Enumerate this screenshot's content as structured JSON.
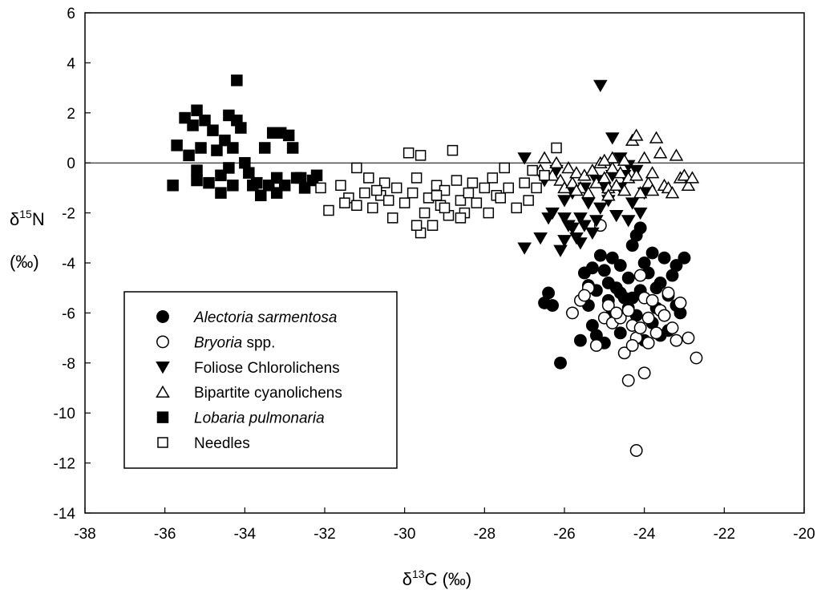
{
  "chart_data": {
    "type": "scatter",
    "title": "",
    "xlabel": {
      "base": "δ",
      "sup": "13",
      "rest": "C (‰)"
    },
    "ylabel": {
      "base": "δ",
      "sup": "15",
      "rest": "N",
      "unit": "(‰)"
    },
    "xlim": [
      -38,
      -20
    ],
    "ylim": [
      -14,
      6
    ],
    "xticks": [
      -38,
      -36,
      -34,
      -32,
      -30,
      -28,
      -26,
      -24,
      -22,
      -20
    ],
    "yticks": [
      -14,
      -12,
      -10,
      -8,
      -6,
      -4,
      -2,
      0,
      2,
      4,
      6
    ],
    "reference_line_y": 0,
    "legend_position": "lower-left",
    "series": [
      {
        "name": "Alectoria sarmentosa",
        "display": {
          "italic": "Alectoria sarmentosa",
          "plain": ""
        },
        "marker": "circle-filled",
        "points": [
          [
            -26.4,
            -5.2
          ],
          [
            -26.5,
            -5.6
          ],
          [
            -26.3,
            -5.7
          ],
          [
            -26.1,
            -8.0
          ],
          [
            -25.6,
            -7.1
          ],
          [
            -25.5,
            -4.4
          ],
          [
            -25.4,
            -4.9
          ],
          [
            -25.3,
            -4.2
          ],
          [
            -25.2,
            -5.1
          ],
          [
            -25.1,
            -3.7
          ],
          [
            -25.0,
            -4.3
          ],
          [
            -24.9,
            -4.8
          ],
          [
            -24.8,
            -3.8
          ],
          [
            -24.7,
            -5.0
          ],
          [
            -24.6,
            -4.1
          ],
          [
            -24.5,
            -5.4
          ],
          [
            -24.4,
            -4.6
          ],
          [
            -24.3,
            -3.3
          ],
          [
            -24.2,
            -2.9
          ],
          [
            -24.1,
            -2.6
          ],
          [
            -24.0,
            -4.0
          ],
          [
            -23.9,
            -4.4
          ],
          [
            -23.8,
            -3.6
          ],
          [
            -23.7,
            -5.0
          ],
          [
            -23.6,
            -4.8
          ],
          [
            -23.5,
            -3.8
          ],
          [
            -23.4,
            -5.3
          ],
          [
            -23.3,
            -4.5
          ],
          [
            -23.2,
            -5.7
          ],
          [
            -23.1,
            -6.0
          ],
          [
            -23.0,
            -3.8
          ],
          [
            -23.2,
            -4.1
          ],
          [
            -25.3,
            -6.5
          ],
          [
            -25.2,
            -6.9
          ],
          [
            -25.0,
            -7.2
          ],
          [
            -24.8,
            -6.0
          ],
          [
            -24.6,
            -6.8
          ],
          [
            -24.4,
            -5.8
          ],
          [
            -24.2,
            -6.1
          ],
          [
            -24.0,
            -7.1
          ],
          [
            -23.8,
            -6.4
          ],
          [
            -23.6,
            -6.9
          ],
          [
            -23.4,
            -6.7
          ],
          [
            -25.4,
            -5.7
          ],
          [
            -24.9,
            -5.5
          ],
          [
            -24.6,
            -5.2
          ],
          [
            -24.3,
            -5.4
          ],
          [
            -24.1,
            -5.1
          ],
          [
            -23.7,
            -5.8
          ],
          [
            -23.5,
            -6.1
          ]
        ]
      },
      {
        "name": "Bryoria spp.",
        "display": {
          "italic": "Bryoria",
          "plain": " spp."
        },
        "marker": "circle-open",
        "points": [
          [
            -25.1,
            -2.5
          ],
          [
            -25.8,
            -6.0
          ],
          [
            -25.6,
            -5.5
          ],
          [
            -25.4,
            -5.0
          ],
          [
            -25.2,
            -7.3
          ],
          [
            -25.0,
            -6.2
          ],
          [
            -24.9,
            -5.7
          ],
          [
            -24.8,
            -6.4
          ],
          [
            -24.6,
            -6.2
          ],
          [
            -24.5,
            -7.6
          ],
          [
            -24.4,
            -5.9
          ],
          [
            -24.3,
            -6.5
          ],
          [
            -24.2,
            -7.0
          ],
          [
            -24.1,
            -6.6
          ],
          [
            -24.0,
            -5.4
          ],
          [
            -23.9,
            -6.2
          ],
          [
            -23.8,
            -5.5
          ],
          [
            -23.7,
            -6.8
          ],
          [
            -23.6,
            -5.9
          ],
          [
            -23.5,
            -6.1
          ],
          [
            -23.4,
            -5.2
          ],
          [
            -23.3,
            -6.6
          ],
          [
            -23.2,
            -7.1
          ],
          [
            -23.1,
            -5.6
          ],
          [
            -22.9,
            -7.0
          ],
          [
            -22.7,
            -7.8
          ],
          [
            -24.4,
            -8.7
          ],
          [
            -24.0,
            -8.4
          ],
          [
            -24.2,
            -11.5
          ],
          [
            -24.3,
            -7.3
          ],
          [
            -23.9,
            -7.2
          ],
          [
            -25.5,
            -5.3
          ],
          [
            -24.7,
            -6.0
          ],
          [
            -24.1,
            -4.5
          ]
        ]
      },
      {
        "name": "Foliose Chlorolichens",
        "display": {
          "italic": "",
          "plain": "Foliose Chlorolichens"
        },
        "marker": "triangle-down-filled",
        "points": [
          [
            -25.1,
            3.1
          ],
          [
            -27.0,
            0.2
          ],
          [
            -27.0,
            -3.4
          ],
          [
            -26.6,
            -3.0
          ],
          [
            -26.5,
            -0.7
          ],
          [
            -26.3,
            -2.0
          ],
          [
            -26.2,
            -0.3
          ],
          [
            -26.1,
            -3.5
          ],
          [
            -26.0,
            -2.2
          ],
          [
            -25.9,
            -2.5
          ],
          [
            -25.8,
            -2.6
          ],
          [
            -25.7,
            -3.0
          ],
          [
            -25.6,
            -2.2
          ],
          [
            -25.5,
            -2.5
          ],
          [
            -25.4,
            -1.6
          ],
          [
            -25.3,
            -2.8
          ],
          [
            -25.2,
            -2.3
          ],
          [
            -25.1,
            -1.8
          ],
          [
            -25.0,
            -1.0
          ],
          [
            -24.9,
            -1.5
          ],
          [
            -24.8,
            1.0
          ],
          [
            -24.7,
            -2.1
          ],
          [
            -24.6,
            -1.0
          ],
          [
            -24.5,
            -0.5
          ],
          [
            -24.4,
            -2.3
          ],
          [
            -24.3,
            -1.6
          ],
          [
            -24.2,
            -0.3
          ],
          [
            -24.1,
            -2.0
          ],
          [
            -24.0,
            -1.2
          ],
          [
            -24.6,
            0.2
          ],
          [
            -25.5,
            -1.0
          ],
          [
            -26.0,
            -1.5
          ],
          [
            -25.8,
            -1.2
          ],
          [
            -24.8,
            -0.5
          ],
          [
            -25.2,
            -0.7
          ],
          [
            -26.4,
            -2.2
          ],
          [
            -25.6,
            -3.2
          ],
          [
            -26.0,
            -3.1
          ],
          [
            -24.4,
            -0.1
          ]
        ]
      },
      {
        "name": "Bipartite cyanolichens",
        "display": {
          "italic": "",
          "plain": "Bipartite cyanolichens"
        },
        "marker": "triangle-up-open",
        "points": [
          [
            -26.5,
            0.2
          ],
          [
            -26.3,
            -0.5
          ],
          [
            -26.1,
            -0.7
          ],
          [
            -26.0,
            -1.0
          ],
          [
            -25.9,
            -0.2
          ],
          [
            -25.8,
            -0.8
          ],
          [
            -25.7,
            -0.4
          ],
          [
            -25.6,
            -1.0
          ],
          [
            -25.5,
            -0.5
          ],
          [
            -25.4,
            -1.2
          ],
          [
            -25.3,
            -0.3
          ],
          [
            -25.2,
            -0.8
          ],
          [
            -25.1,
            0.0
          ],
          [
            -25.0,
            -0.6
          ],
          [
            -24.9,
            -1.0
          ],
          [
            -24.8,
            -0.2
          ],
          [
            -24.7,
            -0.9
          ],
          [
            -24.6,
            -0.4
          ],
          [
            -24.5,
            -1.1
          ],
          [
            -24.4,
            -0.6
          ],
          [
            -24.3,
            0.9
          ],
          [
            -24.2,
            1.1
          ],
          [
            -24.1,
            -1.2
          ],
          [
            -24.0,
            0.2
          ],
          [
            -23.9,
            -0.8
          ],
          [
            -23.8,
            -1.1
          ],
          [
            -23.7,
            1.0
          ],
          [
            -23.6,
            0.4
          ],
          [
            -23.5,
            -0.9
          ],
          [
            -23.4,
            -1.0
          ],
          [
            -23.3,
            -1.2
          ],
          [
            -23.2,
            0.3
          ],
          [
            -23.1,
            -0.6
          ],
          [
            -23.0,
            -0.5
          ],
          [
            -22.9,
            -0.9
          ],
          [
            -22.8,
            -0.6
          ],
          [
            -24.5,
            0.1
          ],
          [
            -24.8,
            0.2
          ],
          [
            -25.0,
            0.1
          ],
          [
            -24.2,
            -0.5
          ],
          [
            -23.8,
            -0.4
          ],
          [
            -26.2,
            0.0
          ],
          [
            -25.7,
            -1.1
          ],
          [
            -24.9,
            -1.3
          ],
          [
            -26.6,
            -0.3
          ]
        ]
      },
      {
        "name": "Lobaria pulmonaria",
        "display": {
          "italic": "Lobaria pulmonaria",
          "plain": ""
        },
        "marker": "square-filled",
        "points": [
          [
            -35.8,
            -0.9
          ],
          [
            -35.7,
            0.7
          ],
          [
            -35.5,
            1.8
          ],
          [
            -35.4,
            0.3
          ],
          [
            -35.3,
            1.5
          ],
          [
            -35.2,
            2.1
          ],
          [
            -35.2,
            -0.3
          ],
          [
            -35.1,
            0.6
          ],
          [
            -35.0,
            1.7
          ],
          [
            -34.9,
            -0.8
          ],
          [
            -34.8,
            1.3
          ],
          [
            -34.7,
            0.5
          ],
          [
            -34.6,
            -1.2
          ],
          [
            -34.5,
            0.9
          ],
          [
            -34.4,
            1.9
          ],
          [
            -34.3,
            0.6
          ],
          [
            -34.2,
            1.7
          ],
          [
            -34.2,
            3.3
          ],
          [
            -34.1,
            1.4
          ],
          [
            -34.0,
            0.0
          ],
          [
            -33.9,
            -0.4
          ],
          [
            -33.8,
            -0.9
          ],
          [
            -33.6,
            -1.3
          ],
          [
            -33.5,
            0.6
          ],
          [
            -33.4,
            -0.9
          ],
          [
            -33.3,
            1.2
          ],
          [
            -33.2,
            -0.6
          ],
          [
            -33.1,
            1.2
          ],
          [
            -33.0,
            -0.9
          ],
          [
            -32.9,
            1.1
          ],
          [
            -32.8,
            0.6
          ],
          [
            -32.7,
            -0.6
          ],
          [
            -32.5,
            -1.0
          ],
          [
            -32.3,
            -0.7
          ],
          [
            -32.2,
            -0.5
          ],
          [
            -35.2,
            -0.7
          ],
          [
            -34.6,
            -0.5
          ],
          [
            -34.4,
            -0.2
          ],
          [
            -33.7,
            -0.8
          ],
          [
            -33.2,
            -1.2
          ],
          [
            -32.6,
            -0.6
          ],
          [
            -34.3,
            -0.9
          ]
        ]
      },
      {
        "name": "Needles",
        "display": {
          "italic": "",
          "plain": "Needles"
        },
        "marker": "square-open",
        "points": [
          [
            -32.1,
            -1.0
          ],
          [
            -31.9,
            -1.9
          ],
          [
            -31.6,
            -0.9
          ],
          [
            -31.4,
            -1.4
          ],
          [
            -31.2,
            -1.7
          ],
          [
            -31.2,
            -0.2
          ],
          [
            -31.0,
            -1.2
          ],
          [
            -30.9,
            -0.6
          ],
          [
            -30.8,
            -1.8
          ],
          [
            -30.6,
            -1.3
          ],
          [
            -30.5,
            -0.8
          ],
          [
            -30.4,
            -1.5
          ],
          [
            -30.3,
            -2.2
          ],
          [
            -30.2,
            -1.0
          ],
          [
            -30.0,
            -1.6
          ],
          [
            -29.9,
            0.4
          ],
          [
            -29.8,
            -1.2
          ],
          [
            -29.7,
            -0.6
          ],
          [
            -29.6,
            -2.8
          ],
          [
            -29.6,
            0.3
          ],
          [
            -29.5,
            -2.0
          ],
          [
            -29.4,
            -1.4
          ],
          [
            -29.3,
            -2.5
          ],
          [
            -29.2,
            -0.9
          ],
          [
            -29.1,
            -1.7
          ],
          [
            -29.0,
            -1.1
          ],
          [
            -28.9,
            -2.1
          ],
          [
            -28.8,
            0.5
          ],
          [
            -28.7,
            -0.7
          ],
          [
            -28.6,
            -1.5
          ],
          [
            -28.5,
            -2.0
          ],
          [
            -28.4,
            -1.2
          ],
          [
            -28.3,
            -0.8
          ],
          [
            -28.2,
            -1.6
          ],
          [
            -28.0,
            -1.0
          ],
          [
            -27.9,
            -2.0
          ],
          [
            -27.8,
            -0.6
          ],
          [
            -27.7,
            -1.3
          ],
          [
            -27.5,
            -0.2
          ],
          [
            -27.4,
            -1.0
          ],
          [
            -27.2,
            -1.8
          ],
          [
            -27.0,
            -0.8
          ],
          [
            -26.9,
            -1.5
          ],
          [
            -26.7,
            -1.0
          ],
          [
            -26.5,
            -0.5
          ],
          [
            -26.2,
            0.6
          ],
          [
            -29.7,
            -2.5
          ],
          [
            -29.0,
            -1.8
          ],
          [
            -28.6,
            -2.2
          ],
          [
            -30.7,
            -1.1
          ],
          [
            -31.5,
            -1.6
          ],
          [
            -29.2,
            -1.3
          ],
          [
            -27.6,
            -1.4
          ],
          [
            -26.8,
            -0.3
          ]
        ]
      }
    ]
  }
}
